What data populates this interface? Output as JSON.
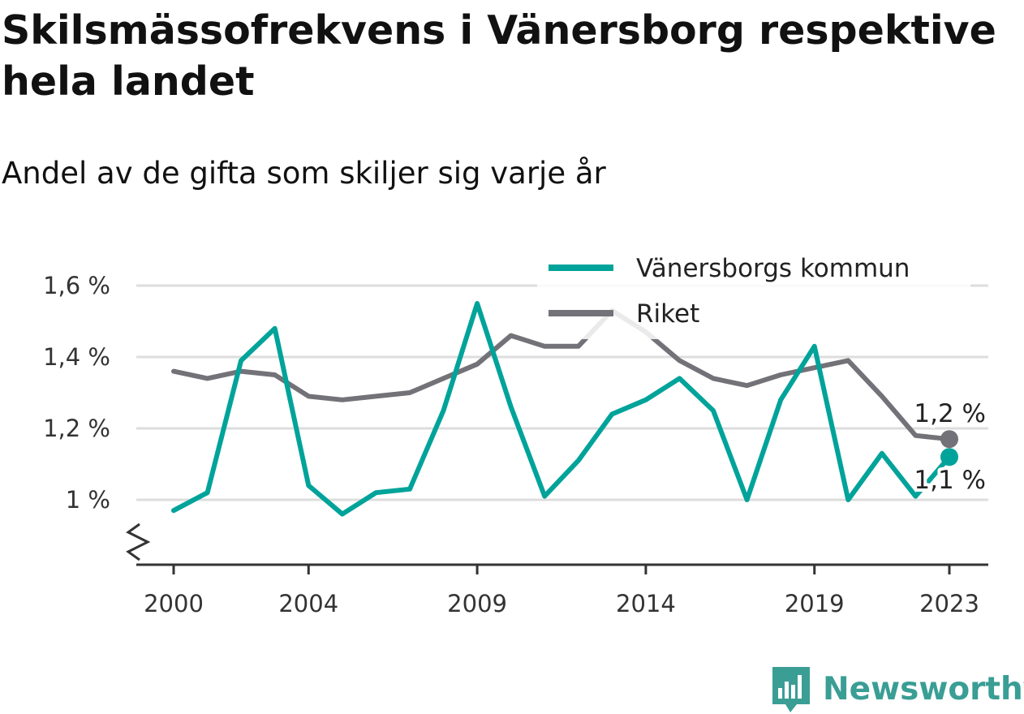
{
  "header": {
    "title": "Skilsmässofrekvens i Vänersborg respektive hela landet",
    "subtitle": "Andel av de gifta som skiljer sig varje år"
  },
  "brand": {
    "name": "Newsworthy",
    "logo_icon": "bar-chart-speech-bubble-icon",
    "color": "#3a9e95"
  },
  "chart_data": {
    "type": "line",
    "x": [
      2000,
      2001,
      2002,
      2003,
      2004,
      2005,
      2006,
      2007,
      2008,
      2009,
      2010,
      2011,
      2012,
      2013,
      2014,
      2015,
      2016,
      2017,
      2018,
      2019,
      2020,
      2021,
      2022,
      2023
    ],
    "x_ticks": [
      2000,
      2004,
      2009,
      2014,
      2019,
      2023
    ],
    "x_tick_labels": [
      "2000",
      "2004",
      "2009",
      "2014",
      "2019",
      "2023"
    ],
    "y_ticks": [
      1.0,
      1.2,
      1.4,
      1.6
    ],
    "y_tick_labels": [
      "1 %",
      "1,2 %",
      "1,4 %",
      "1,6 %"
    ],
    "ylim": [
      0.8,
      1.62
    ],
    "axis_break": true,
    "grid": true,
    "legend_position": "top-right",
    "series": [
      {
        "name": "Vänersborgs kommun",
        "color": "#00a39a",
        "values": [
          0.97,
          1.02,
          1.39,
          1.48,
          1.04,
          0.96,
          1.02,
          1.03,
          1.25,
          1.55,
          1.26,
          1.01,
          1.11,
          1.24,
          1.28,
          1.34,
          1.25,
          1.0,
          1.28,
          1.43,
          1.0,
          1.13,
          1.01,
          1.12
        ],
        "end_label": "1,1 %"
      },
      {
        "name": "Riket",
        "color": "#737278",
        "values": [
          1.36,
          1.34,
          1.36,
          1.35,
          1.29,
          1.28,
          1.29,
          1.3,
          1.34,
          1.38,
          1.46,
          1.43,
          1.43,
          1.53,
          1.47,
          1.39,
          1.34,
          1.32,
          1.35,
          1.37,
          1.39,
          1.29,
          1.18,
          1.17
        ],
        "end_label": "1,2 %"
      }
    ]
  }
}
